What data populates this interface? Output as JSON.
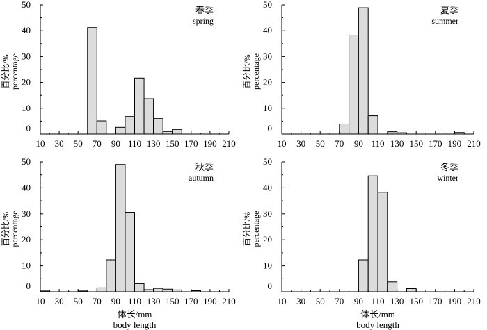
{
  "chart_data": [
    {
      "type": "bar",
      "title": "春季",
      "subtitle": "spring",
      "ylabel_cn": "百分比/%",
      "ylabel_en": "percentage",
      "xlabel_cn": "",
      "xlabel_en": "",
      "xticks": [
        "10",
        "30",
        "50",
        "70",
        "90",
        "110",
        "130",
        "150",
        "170",
        "190",
        "210"
      ],
      "yticks": [
        "0",
        "10",
        "20",
        "30",
        "40",
        "50"
      ],
      "xlim": [
        10,
        210
      ],
      "ylim": [
        0,
        50
      ],
      "bin_width": 10,
      "x": [
        60,
        70,
        90,
        100,
        110,
        120,
        130,
        140,
        150
      ],
      "values": [
        41.2,
        5.1,
        2.6,
        6.8,
        21.7,
        13.7,
        6.0,
        1.0,
        1.8
      ]
    },
    {
      "type": "bar",
      "title": "夏季",
      "subtitle": "summer",
      "ylabel_cn": "百分比/%",
      "ylabel_en": "percentage",
      "xlabel_cn": "",
      "xlabel_en": "",
      "xticks": [
        "10",
        "30",
        "50",
        "70",
        "90",
        "110",
        "130",
        "150",
        "170",
        "190",
        "210"
      ],
      "yticks": [
        "0",
        "10",
        "20",
        "30",
        "40",
        "50"
      ],
      "xlim": [
        10,
        210
      ],
      "ylim": [
        0,
        50
      ],
      "bin_width": 10,
      "x": [
        70,
        80,
        90,
        100,
        120,
        130,
        190
      ],
      "values": [
        3.9,
        38.3,
        48.9,
        7.1,
        0.9,
        0.5,
        0.6
      ]
    },
    {
      "type": "bar",
      "title": "秋季",
      "subtitle": "autumn",
      "ylabel_cn": "百分比/%",
      "ylabel_en": "percentage",
      "xlabel_cn": "体长/mm",
      "xlabel_en": "body length",
      "xticks": [
        "10",
        "30",
        "50",
        "70",
        "90",
        "110",
        "130",
        "150",
        "170",
        "190",
        "210"
      ],
      "yticks": [
        "0",
        "10",
        "20",
        "30",
        "40",
        "50"
      ],
      "xlim": [
        10,
        210
      ],
      "ylim": [
        0,
        50
      ],
      "bin_width": 10,
      "x": [
        10,
        50,
        70,
        80,
        90,
        100,
        110,
        120,
        130,
        140,
        150,
        170
      ],
      "values": [
        0.3,
        0.3,
        1.5,
        12.3,
        49.0,
        30.6,
        3.1,
        0.8,
        1.3,
        1.0,
        0.7,
        0.4
      ]
    },
    {
      "type": "bar",
      "title": "冬季",
      "subtitle": "winter",
      "ylabel_cn": "百分比/%",
      "ylabel_en": "percentage",
      "xlabel_cn": "体长/mm",
      "xlabel_en": "body length",
      "xticks": [
        "10",
        "30",
        "50",
        "70",
        "90",
        "110",
        "130",
        "150",
        "170",
        "190",
        "210"
      ],
      "yticks": [
        "0",
        "10",
        "20",
        "30",
        "40",
        "50"
      ],
      "xlim": [
        10,
        210
      ],
      "ylim": [
        0,
        50
      ],
      "bin_width": 10,
      "x": [
        90,
        100,
        110,
        120,
        140
      ],
      "values": [
        12.3,
        44.6,
        38.3,
        3.8,
        1.2
      ]
    }
  ]
}
